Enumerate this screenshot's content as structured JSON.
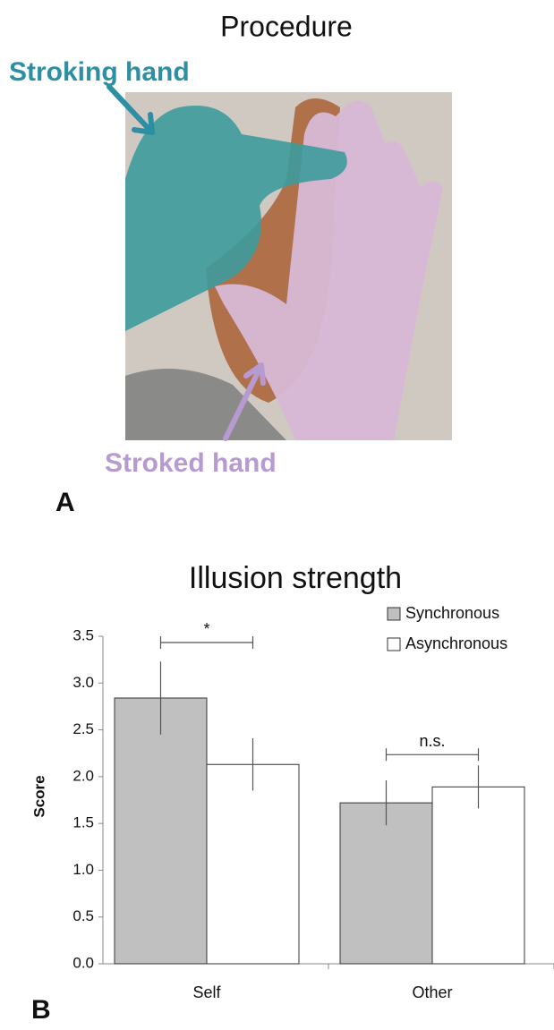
{
  "panel_a": {
    "title": "Procedure",
    "stroking_label": "Stroking hand",
    "stroked_label": "Stroked hand",
    "panel_letter": "A"
  },
  "panel_b_letter": "B",
  "chart_data": {
    "type": "bar",
    "title": "Illusion strength",
    "y_label": "Score",
    "categories": [
      "Self",
      "Other"
    ],
    "series": [
      {
        "name": "Synchronous",
        "color": "#c0c0c0",
        "values": [
          2.84,
          1.72
        ],
        "errors": [
          0.39,
          0.24
        ]
      },
      {
        "name": "Asynchronous",
        "color": "#ffffff",
        "values": [
          2.13,
          1.89
        ],
        "errors": [
          0.28,
          0.23
        ]
      }
    ],
    "annotations": [
      "*",
      "n.s."
    ],
    "ylim": [
      0,
      3.5
    ],
    "yticks": [
      {
        "value": 0,
        "label": "0.0"
      },
      {
        "value": 0.5,
        "label": "0.5"
      },
      {
        "value": 1,
        "label": "1.0"
      },
      {
        "value": 1.5,
        "label": "1.5"
      },
      {
        "value": 2,
        "label": "2.0"
      },
      {
        "value": 2.5,
        "label": "2.5"
      },
      {
        "value": 3,
        "label": "3.0"
      },
      {
        "value": 3.5,
        "label": "3.5"
      }
    ],
    "legend": "upper right"
  }
}
